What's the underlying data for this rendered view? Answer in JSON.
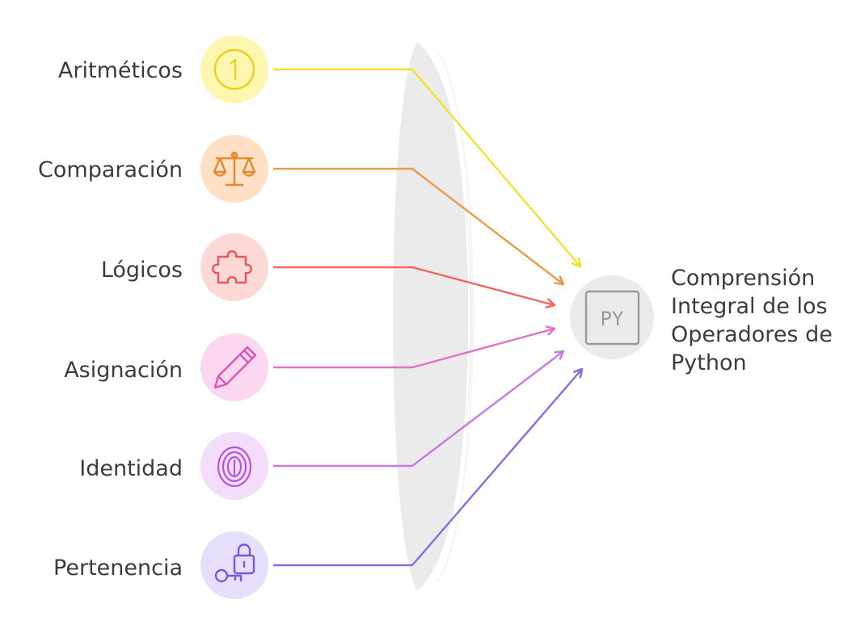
{
  "inputs": [
    {
      "label": "Aritméticos",
      "icon": "number-one-icon",
      "circle": "#fdf6b0",
      "color": "#e8d21a",
      "arrow": "#f2e22a"
    },
    {
      "label": "Comparación",
      "icon": "balance-scale-icon",
      "circle": "#fde0c5",
      "color": "#e48a2e",
      "arrow": "#eb9a45"
    },
    {
      "label": "Lógicos",
      "icon": "puzzle-piece-icon",
      "circle": "#fdd9d6",
      "color": "#e8575a",
      "arrow": "#ee6a5e"
    },
    {
      "label": "Asignación",
      "icon": "pencil-icon",
      "circle": "#fbd8ef",
      "color": "#da55b9",
      "arrow": "#e171c9"
    },
    {
      "label": "Identidad",
      "icon": "fingerprint-icon",
      "circle": "#f4ddfb",
      "color": "#b455de",
      "arrow": "#c57ae3"
    },
    {
      "label": "Pertenencia",
      "icon": "key-lock-icon",
      "circle": "#e6dffc",
      "color": "#7a57df",
      "arrow": "#8a6ae6"
    }
  ],
  "target": {
    "icon_text": "PY",
    "icon": "python-file-icon",
    "label_lines": [
      "Comprensión",
      "Integral de los",
      "Operadores de",
      "Python"
    ]
  }
}
